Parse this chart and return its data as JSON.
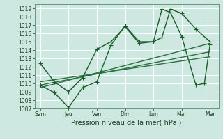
{
  "xlabel": "Pression niveau de la mer( hPa )",
  "bg_color": "#cce8e0",
  "grid_color": "#b0d8d0",
  "line_color": "#1a5c28",
  "trend_color": "#2d7040",
  "ylim": [
    1007,
    1019.5
  ],
  "yticks": [
    1007,
    1008,
    1009,
    1010,
    1011,
    1012,
    1013,
    1014,
    1015,
    1016,
    1017,
    1018,
    1019
  ],
  "x_labels": [
    "Sam",
    "Jeu",
    "Ven",
    "Dim",
    "Lun",
    "Mar",
    "Mer"
  ],
  "x_tick_positions": [
    0,
    1,
    2,
    3,
    4,
    5,
    6
  ],
  "series1_x": [
    0,
    0.5,
    1,
    1.5,
    2,
    2.5,
    3,
    3.5,
    4,
    4.3,
    4.6,
    5,
    5.5,
    6
  ],
  "series1_y": [
    1012.4,
    1010.2,
    1009.0,
    1010.7,
    1014.1,
    1015.0,
    1016.8,
    1014.8,
    1015.0,
    1015.5,
    1018.9,
    1018.4,
    1016.5,
    1015.0
  ],
  "series2_x": [
    0,
    0.5,
    1,
    1.5,
    2,
    2.5,
    3,
    3.5,
    4,
    4.3,
    4.6,
    5,
    5.5,
    5.8,
    6
  ],
  "series2_y": [
    1009.8,
    1008.9,
    1007.1,
    1009.5,
    1010.2,
    1014.6,
    1016.9,
    1015.0,
    1015.0,
    1018.9,
    1018.5,
    1015.6,
    1009.8,
    1010.0,
    1014.7
  ],
  "trend1_x": [
    0,
    6
  ],
  "trend1_y": [
    1009.5,
    1014.8
  ],
  "trend2_x": [
    0,
    6
  ],
  "trend2_y": [
    1009.8,
    1013.8
  ],
  "trend3_x": [
    0,
    6
  ],
  "trend3_y": [
    1010.2,
    1013.2
  ],
  "marker_size": 2.5,
  "line_width": 1.0,
  "tick_fontsize": 5.5,
  "label_fontsize": 7.0
}
